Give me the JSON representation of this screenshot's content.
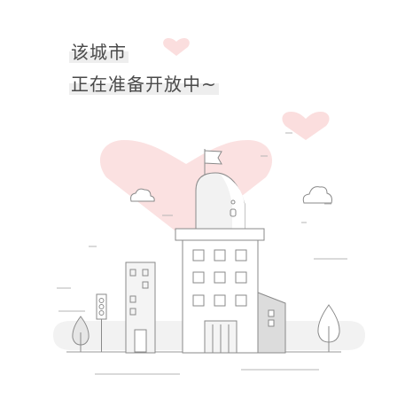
{
  "empty_state": {
    "line1": "该城市",
    "line2": "正在准备开放中~"
  },
  "colors": {
    "heart": "#fbdcdc",
    "outline": "#8a8a8a",
    "fill_light": "#f2f2f2",
    "fill_mid": "#dcdcdc",
    "text": "#4a4a4a"
  },
  "icons": [
    "heart-icon",
    "cloud-icon",
    "flag-icon",
    "traffic-light-icon",
    "tree-icon",
    "building-icon"
  ]
}
